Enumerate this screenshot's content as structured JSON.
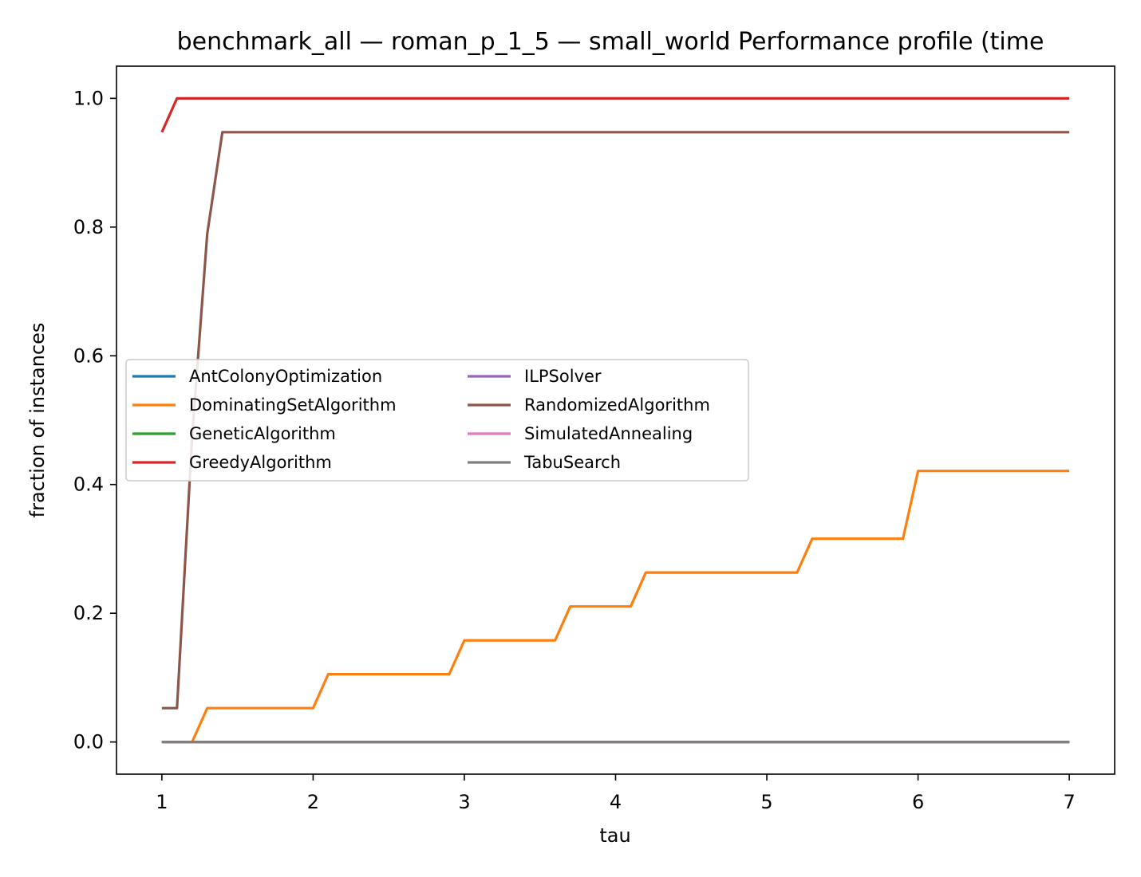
{
  "chart_data": {
    "type": "line",
    "title": "benchmark_all — roman_p_1_5 — small_world Performance profile (time",
    "xlabel": "tau",
    "ylabel": "fraction of instances",
    "xlim": [
      0.7,
      7.3
    ],
    "ylim": [
      -0.05,
      1.05
    ],
    "xticks": [
      1,
      2,
      3,
      4,
      5,
      6,
      7
    ],
    "yticks": [
      0.0,
      0.2,
      0.4,
      0.6,
      0.8,
      1.0
    ],
    "xtick_labels": [
      "1",
      "2",
      "3",
      "4",
      "5",
      "6",
      "7"
    ],
    "ytick_labels": [
      "0.0",
      "0.2",
      "0.4",
      "0.6",
      "0.8",
      "1.0"
    ],
    "grid": false,
    "legend_position": "center-left",
    "series": [
      {
        "name": "AntColonyOptimization",
        "color": "#1f77b4",
        "x": [
          1.0,
          7.0
        ],
        "y": [
          0.0,
          0.0
        ]
      },
      {
        "name": "DominatingSetAlgorithm",
        "color": "#ff7f0e",
        "x": [
          1.0,
          1.2,
          1.3,
          2.0,
          2.1,
          2.9,
          3.0,
          3.6,
          3.7,
          4.1,
          4.2,
          5.2,
          5.3,
          5.9,
          6.0,
          7.0
        ],
        "y": [
          0.0,
          0.0,
          0.0526,
          0.0526,
          0.1053,
          0.1053,
          0.1579,
          0.1579,
          0.2105,
          0.2105,
          0.2632,
          0.2632,
          0.3158,
          0.3158,
          0.4211,
          0.4211
        ]
      },
      {
        "name": "GeneticAlgorithm",
        "color": "#2ca02c",
        "x": [
          1.0,
          7.0
        ],
        "y": [
          0.0,
          0.0
        ]
      },
      {
        "name": "GreedyAlgorithm",
        "color": "#d62728",
        "x": [
          1.0,
          1.1,
          7.0
        ],
        "y": [
          0.9474,
          1.0,
          1.0
        ]
      },
      {
        "name": "ILPSolver",
        "color": "#9467bd",
        "x": [
          1.0,
          7.0
        ],
        "y": [
          0.0,
          0.0
        ]
      },
      {
        "name": "RandomizedAlgorithm",
        "color": "#8c564b",
        "x": [
          1.0,
          1.1,
          1.2,
          1.3,
          1.4,
          7.0
        ],
        "y": [
          0.0526,
          0.0526,
          0.4737,
          0.7895,
          0.9474,
          0.9474
        ]
      },
      {
        "name": "SimulatedAnnealing",
        "color": "#e377c2",
        "x": [
          1.0,
          7.0
        ],
        "y": [
          0.0,
          0.0
        ]
      },
      {
        "name": "TabuSearch",
        "color": "#7f7f7f",
        "x": [
          1.0,
          7.0
        ],
        "y": [
          0.0,
          0.0
        ]
      }
    ]
  }
}
